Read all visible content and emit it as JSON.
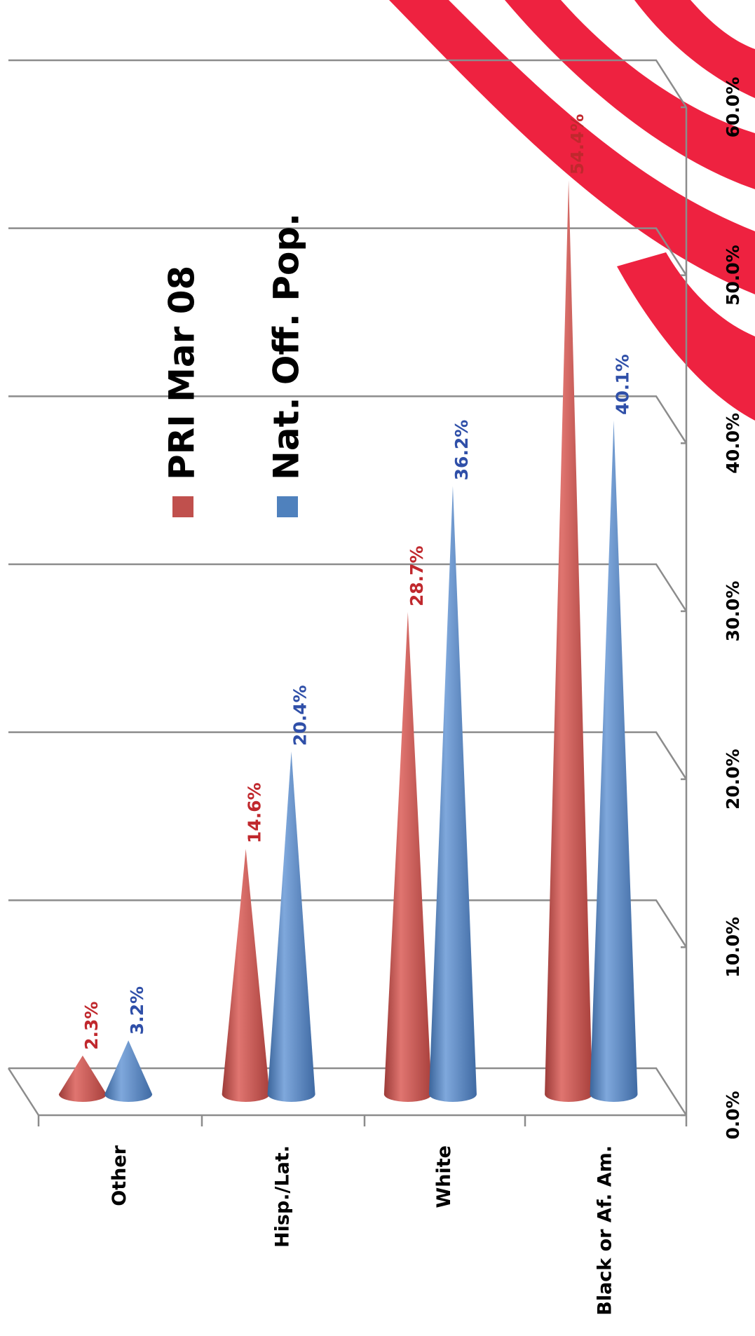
{
  "chart_data": {
    "type": "cone",
    "categories": [
      "Other",
      "Hisp./Lat.",
      "White",
      "Black or Af. Am."
    ],
    "series": [
      {
        "name": "PRI Mar 08",
        "color": "#c0504d",
        "label_color": "#c0282d",
        "values": [
          2.3,
          14.6,
          28.7,
          54.4
        ],
        "value_labels": [
          "2.3%",
          "14.6%",
          "28.7%",
          "54.4%"
        ]
      },
      {
        "name": "Nat. Off. Pop.",
        "color": "#4f81bd",
        "label_color": "#2f4fa8",
        "values": [
          3.2,
          20.4,
          36.2,
          40.1
        ],
        "value_labels": [
          "3.2%",
          "20.4%",
          "36.2%",
          "40.1%"
        ]
      }
    ],
    "ylim": [
      0,
      60
    ],
    "yticks": [
      {
        "value": 0,
        "label": "0.0%"
      },
      {
        "value": 10,
        "label": "10.0%"
      },
      {
        "value": 20,
        "label": "20.0%"
      },
      {
        "value": 30,
        "label": "30.0%"
      },
      {
        "value": 40,
        "label": "40.0%"
      },
      {
        "value": 50,
        "label": "50.0%"
      },
      {
        "value": 60,
        "label": "60.0%"
      }
    ],
    "grid": true
  }
}
